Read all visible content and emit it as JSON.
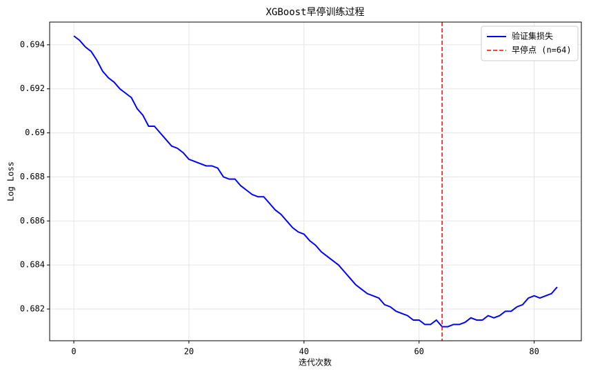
{
  "chart_data": {
    "type": "line",
    "title": "XGBoost早停训练过程",
    "xlabel": "迭代次数",
    "ylabel": "Log Loss",
    "x": [
      0,
      1,
      2,
      3,
      4,
      5,
      6,
      7,
      8,
      9,
      10,
      11,
      12,
      13,
      14,
      15,
      16,
      17,
      18,
      19,
      20,
      21,
      22,
      23,
      24,
      25,
      26,
      27,
      28,
      29,
      30,
      31,
      32,
      33,
      34,
      35,
      36,
      37,
      38,
      39,
      40,
      41,
      42,
      43,
      44,
      45,
      46,
      47,
      48,
      49,
      50,
      51,
      52,
      53,
      54,
      55,
      56,
      57,
      58,
      59,
      60,
      61,
      62,
      63,
      64,
      65,
      66,
      67,
      68,
      69,
      70,
      71,
      72,
      73,
      74,
      75,
      76,
      77,
      78,
      79,
      80,
      81,
      82,
      83,
      84
    ],
    "series": [
      {
        "name": "验证集损失",
        "color": "#0000ff",
        "values": [
          0.6944,
          0.6942,
          0.6939,
          0.6937,
          0.6933,
          0.6928,
          0.6925,
          0.6923,
          0.692,
          0.6918,
          0.6916,
          0.6911,
          0.6908,
          0.6903,
          0.6903,
          0.69,
          0.6897,
          0.6894,
          0.6893,
          0.6891,
          0.6888,
          0.6887,
          0.6886,
          0.6885,
          0.6885,
          0.6884,
          0.688,
          0.6879,
          0.6879,
          0.6876,
          0.6874,
          0.6872,
          0.6871,
          0.6871,
          0.6868,
          0.6865,
          0.6863,
          0.686,
          0.6857,
          0.6855,
          0.6854,
          0.6851,
          0.6849,
          0.6846,
          0.6844,
          0.6842,
          0.684,
          0.6837,
          0.6834,
          0.6831,
          0.6829,
          0.6827,
          0.6826,
          0.6825,
          0.6822,
          0.6821,
          0.6819,
          0.6818,
          0.6817,
          0.6815,
          0.6815,
          0.6813,
          0.6813,
          0.6815,
          0.6812,
          0.6812,
          0.6813,
          0.6813,
          0.6814,
          0.6816,
          0.6815,
          0.6815,
          0.6817,
          0.6816,
          0.6817,
          0.6819,
          0.6819,
          0.6821,
          0.6822,
          0.6825,
          0.6826,
          0.6825,
          0.6826,
          0.6827,
          0.683
        ]
      }
    ],
    "vlines": [
      {
        "name": "早停点 (n=64)",
        "x": 64,
        "color": "#ff0000"
      }
    ],
    "xlim": [
      -4.2,
      88.2
    ],
    "xticks": [
      0,
      20,
      40,
      60,
      80
    ],
    "ylim": [
      0.68056,
      0.69503
    ],
    "yticks": [
      0.682,
      0.684,
      0.686,
      0.688,
      0.69,
      0.692,
      0.694
    ],
    "grid": true,
    "legend": "upper right"
  }
}
